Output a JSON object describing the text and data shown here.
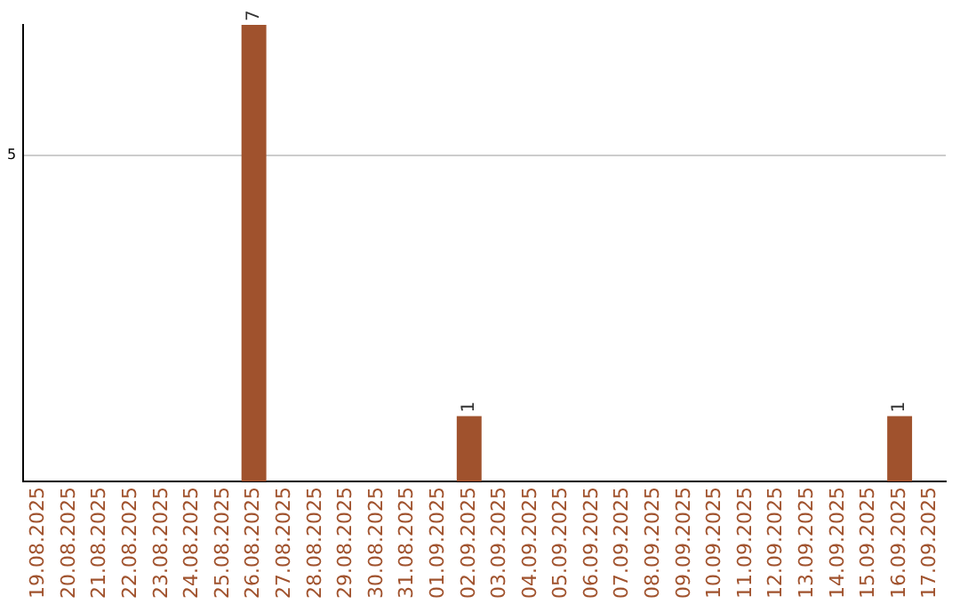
{
  "chart_data": {
    "type": "bar",
    "categories": [
      "19.08.2025",
      "20.08.2025",
      "21.08.2025",
      "22.08.2025",
      "23.08.2025",
      "24.08.2025",
      "25.08.2025",
      "26.08.2025",
      "27.08.2025",
      "28.08.2025",
      "29.08.2025",
      "30.08.2025",
      "31.08.2025",
      "01.09.2025",
      "02.09.2025",
      "03.09.2025",
      "04.09.2025",
      "05.09.2025",
      "06.09.2025",
      "07.09.2025",
      "08.09.2025",
      "09.09.2025",
      "10.09.2025",
      "11.09.2025",
      "12.09.2025",
      "13.09.2025",
      "14.09.2025",
      "15.09.2025",
      "16.09.2025",
      "17.09.2025"
    ],
    "values": [
      0,
      0,
      0,
      0,
      0,
      0,
      0,
      7,
      0,
      0,
      0,
      0,
      0,
      0,
      1,
      0,
      0,
      0,
      0,
      0,
      0,
      0,
      0,
      0,
      0,
      0,
      0,
      0,
      1,
      0
    ],
    "color": "#a0522d",
    "value_labels": [
      null,
      null,
      null,
      null,
      null,
      null,
      null,
      "7",
      null,
      null,
      null,
      null,
      null,
      null,
      "1",
      null,
      null,
      null,
      null,
      null,
      null,
      null,
      null,
      null,
      null,
      null,
      null,
      null,
      "1",
      null
    ],
    "ylim": [
      0,
      7
    ],
    "yticks": [
      5
    ],
    "grid": "y",
    "legend": false
  }
}
